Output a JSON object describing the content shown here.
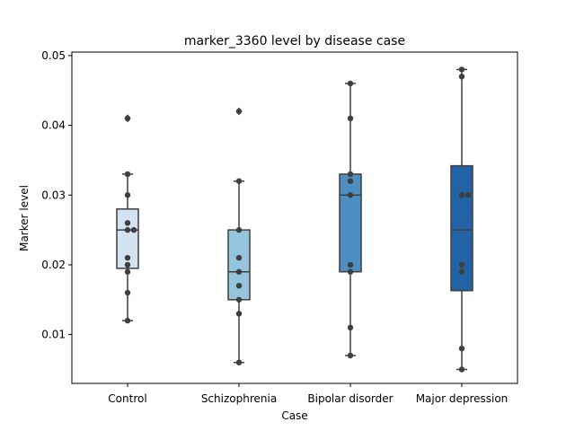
{
  "chart_data": {
    "type": "box",
    "title": "marker_3360 level by disease case",
    "xlabel": "Case",
    "ylabel": "Marker level",
    "ylim": [
      0.003,
      0.0505
    ],
    "yticks": [
      0.01,
      0.02,
      0.03,
      0.04,
      0.05
    ],
    "ytick_labels": [
      "0.01",
      "0.02",
      "0.03",
      "0.04",
      "0.05"
    ],
    "grid": false,
    "legend": "none",
    "categories": [
      "Control",
      "Schizophrenia",
      "Bipolar disorder",
      "Major depression"
    ],
    "colors": [
      "#d3e3f2",
      "#94c4de",
      "#4d8fc2",
      "#2163a4"
    ],
    "boxes": [
      {
        "q1": 0.0195,
        "median": 0.025,
        "q3": 0.028,
        "whisker_low": 0.012,
        "whisker_high": 0.033,
        "outliers": [
          0.041
        ]
      },
      {
        "q1": 0.015,
        "median": 0.019,
        "q3": 0.025,
        "whisker_low": 0.006,
        "whisker_high": 0.032,
        "outliers": [
          0.042
        ]
      },
      {
        "q1": 0.019,
        "median": 0.03,
        "q3": 0.033,
        "whisker_low": 0.007,
        "whisker_high": 0.046,
        "outliers": []
      },
      {
        "q1": 0.0163,
        "median": 0.025,
        "q3": 0.0342,
        "whisker_low": 0.005,
        "whisker_high": 0.048,
        "outliers": []
      }
    ],
    "points": [
      [
        0.041,
        0.033,
        0.03,
        0.026,
        0.025,
        0.025,
        0.021,
        0.02,
        0.019,
        0.016,
        0.012
      ],
      [
        0.042,
        0.032,
        0.025,
        0.021,
        0.019,
        0.017,
        0.015,
        0.013,
        0.006
      ],
      [
        0.046,
        0.041,
        0.033,
        0.032,
        0.03,
        0.02,
        0.019,
        0.011,
        0.007
      ],
      [
        0.048,
        0.047,
        0.03,
        0.03,
        0.02,
        0.019,
        0.008,
        0.005
      ]
    ]
  }
}
